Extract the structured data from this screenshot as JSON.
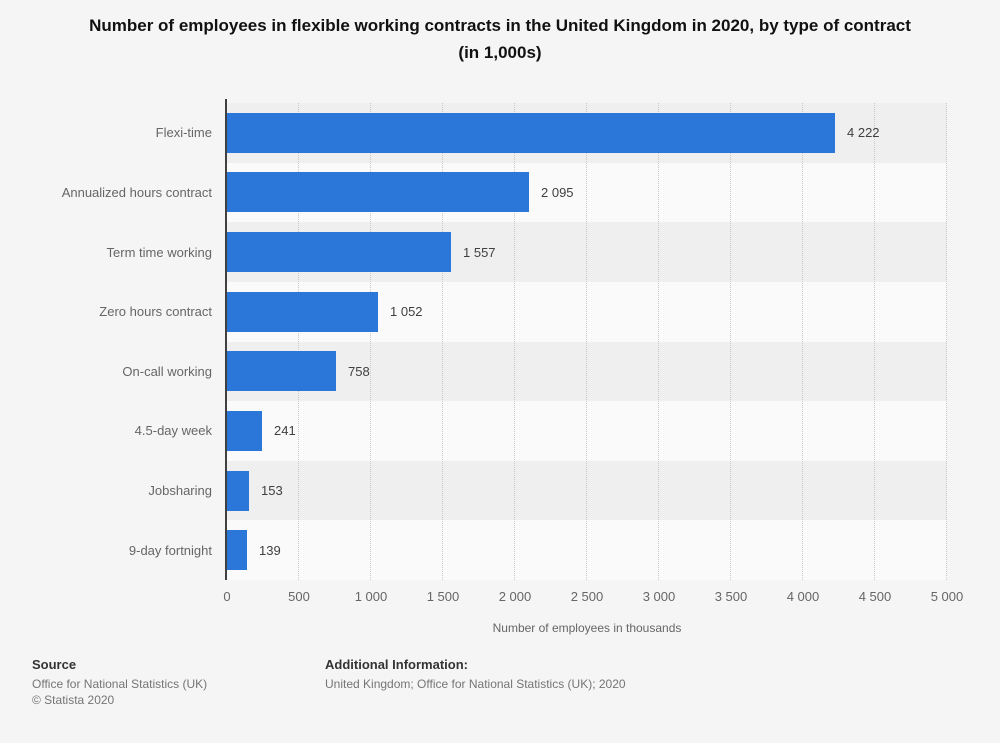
{
  "title": "Number of employees in flexible working contracts in the United Kingdom in 2020, by type of contract (in 1,000s)",
  "chart_data": {
    "type": "bar",
    "orientation": "horizontal",
    "categories": [
      "Flexi-time",
      "Annualized hours contract",
      "Term time working",
      "Zero hours contract",
      "On-call working",
      "4.5-day week",
      "Jobsharing",
      "9-day fortnight"
    ],
    "values": [
      4222,
      2095,
      1557,
      1052,
      758,
      241,
      153,
      139
    ],
    "value_labels": [
      "4 222",
      "2 095",
      "1 557",
      "1 052",
      "758",
      "241",
      "153",
      "139"
    ],
    "xlabel": "Number of employees in thousands",
    "xlim": [
      0,
      5000
    ],
    "tick_interval": 500,
    "tick_labels": [
      "0",
      "500",
      "1 000",
      "1 500",
      "2 000",
      "2 500",
      "3 000",
      "3 500",
      "4 000",
      "4 500",
      "5 000"
    ],
    "bar_color": "#2b76d9",
    "grid": "vertical-dotted",
    "row_band_colors": [
      "#efefef",
      "#fafafa"
    ]
  },
  "footer": {
    "source_label": "Source",
    "source_line1": "Office for National Statistics (UK)",
    "source_line2": "© Statista 2020",
    "additional_label": "Additional Information:",
    "additional_line1": "United Kingdom; Office for National Statistics (UK); 2020"
  }
}
